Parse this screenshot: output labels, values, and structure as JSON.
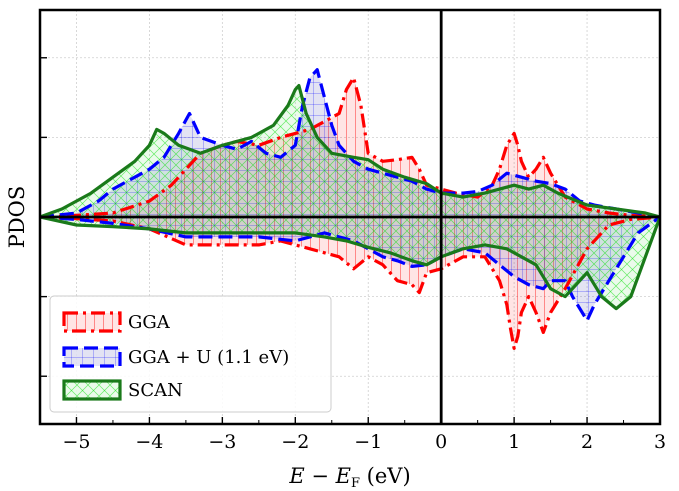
{
  "chart_data": {
    "type": "area",
    "xlabel": "E − E_F (eV)",
    "ylabel": "PDOS",
    "xlim": [
      -5.5,
      3
    ],
    "ylim": [
      -2.6,
      2.6
    ],
    "xticks": [
      -5,
      -4,
      -3,
      -2,
      -1,
      0,
      1,
      2,
      3
    ],
    "xtick_labels": [
      "−5",
      "−4",
      "−3",
      "−2",
      "−1",
      "0",
      "1",
      "2",
      "3"
    ],
    "grid": true,
    "legend_position": "lower-left",
    "reference_lines": {
      "vertical_x": 0,
      "horizontal_y": 0
    },
    "series": [
      {
        "name": "GGA",
        "color": "#ff0000",
        "line_style": "dash-dot",
        "hatch": "vertical-lines",
        "up": {
          "x": [
            -5.5,
            -5.0,
            -4.5,
            -4.0,
            -3.7,
            -3.5,
            -3.3,
            -3.0,
            -2.8,
            -2.5,
            -2.2,
            -2.0,
            -1.8,
            -1.6,
            -1.4,
            -1.3,
            -1.2,
            -1.1,
            -1.0,
            -0.8,
            -0.6,
            -0.4,
            -0.3,
            -0.2,
            0.0,
            0.2,
            0.5,
            0.7,
            0.8,
            0.9,
            1.0,
            1.05,
            1.1,
            1.2,
            1.3,
            1.4,
            1.5,
            1.7,
            2.0,
            2.3,
            2.6,
            3.0
          ],
          "y": [
            0.0,
            0.02,
            0.05,
            0.2,
            0.4,
            0.6,
            0.8,
            0.9,
            0.95,
            0.9,
            1.0,
            1.05,
            1.1,
            1.2,
            1.3,
            1.6,
            1.75,
            1.4,
            0.8,
            0.7,
            0.72,
            0.75,
            0.6,
            0.4,
            0.35,
            0.3,
            0.25,
            0.4,
            0.6,
            0.9,
            1.05,
            0.9,
            0.7,
            0.5,
            0.6,
            0.75,
            0.55,
            0.25,
            0.1,
            0.05,
            0.02,
            0.0
          ]
        },
        "down": {
          "x": [
            -5.5,
            -5.0,
            -4.5,
            -4.0,
            -3.5,
            -3.0,
            -2.5,
            -2.2,
            -2.0,
            -1.8,
            -1.6,
            -1.4,
            -1.2,
            -1.0,
            -0.8,
            -0.6,
            -0.4,
            -0.3,
            -0.2,
            0.0,
            0.3,
            0.6,
            0.8,
            0.9,
            0.95,
            1.0,
            1.05,
            1.1,
            1.2,
            1.3,
            1.4,
            1.5,
            1.7,
            2.0,
            2.3,
            2.6,
            3.0
          ],
          "y": [
            0.0,
            -0.02,
            -0.05,
            -0.15,
            -0.35,
            -0.35,
            -0.35,
            -0.3,
            -0.35,
            -0.4,
            -0.45,
            -0.5,
            -0.65,
            -0.5,
            -0.6,
            -0.8,
            -0.85,
            -0.95,
            -0.7,
            -0.65,
            -0.5,
            -0.5,
            -0.8,
            -1.1,
            -1.4,
            -1.65,
            -1.5,
            -1.2,
            -1.0,
            -1.2,
            -1.45,
            -1.2,
            -0.9,
            -0.4,
            -0.1,
            -0.03,
            0.0
          ]
        }
      },
      {
        "name": "GGA + U (1.1 eV)",
        "color": "#0000ff",
        "line_style": "dashed",
        "hatch": "grid",
        "up": {
          "x": [
            -5.5,
            -5.0,
            -4.7,
            -4.5,
            -4.2,
            -4.0,
            -3.8,
            -3.6,
            -3.45,
            -3.3,
            -3.0,
            -2.8,
            -2.6,
            -2.4,
            -2.2,
            -2.0,
            -1.9,
            -1.8,
            -1.7,
            -1.6,
            -1.5,
            -1.4,
            -1.2,
            -1.0,
            -0.8,
            -0.6,
            -0.4,
            -0.2,
            0.0,
            0.3,
            0.5,
            0.7,
            0.9,
            1.1,
            1.3,
            1.5,
            1.7,
            1.9,
            2.1,
            2.4,
            2.7,
            3.0
          ],
          "y": [
            0.0,
            0.05,
            0.2,
            0.35,
            0.5,
            0.6,
            0.75,
            1.05,
            1.3,
            1.0,
            0.9,
            0.85,
            0.95,
            0.8,
            0.75,
            0.9,
            1.4,
            1.75,
            1.85,
            1.5,
            1.15,
            0.9,
            0.7,
            0.6,
            0.55,
            0.5,
            0.45,
            0.35,
            0.3,
            0.3,
            0.32,
            0.4,
            0.55,
            0.5,
            0.45,
            0.42,
            0.35,
            0.2,
            0.15,
            0.1,
            0.05,
            0.0
          ]
        },
        "down": {
          "x": [
            -5.5,
            -5.0,
            -4.5,
            -4.0,
            -3.5,
            -3.0,
            -2.5,
            -2.0,
            -1.8,
            -1.6,
            -1.4,
            -1.2,
            -1.0,
            -0.8,
            -0.6,
            -0.4,
            -0.2,
            0.0,
            0.3,
            0.6,
            0.8,
            1.0,
            1.2,
            1.4,
            1.5,
            1.7,
            1.8,
            1.9,
            2.0,
            2.1,
            2.3,
            2.5,
            2.7,
            3.0
          ],
          "y": [
            0.0,
            -0.03,
            -0.08,
            -0.15,
            -0.25,
            -0.25,
            -0.25,
            -0.3,
            -0.25,
            -0.2,
            -0.25,
            -0.3,
            -0.4,
            -0.5,
            -0.55,
            -0.62,
            -0.6,
            -0.5,
            -0.4,
            -0.45,
            -0.6,
            -0.75,
            -0.85,
            -0.9,
            -0.8,
            -0.8,
            -1.0,
            -1.15,
            -1.3,
            -1.1,
            -0.8,
            -0.5,
            -0.2,
            0.0
          ]
        }
      },
      {
        "name": "SCAN",
        "color": "#1a7a1a",
        "line_style": "solid",
        "hatch": "cross",
        "up": {
          "x": [
            -5.5,
            -5.2,
            -4.8,
            -4.5,
            -4.2,
            -4.0,
            -3.9,
            -3.8,
            -3.6,
            -3.3,
            -3.0,
            -2.6,
            -2.3,
            -2.1,
            -2.0,
            -1.95,
            -1.85,
            -1.7,
            -1.5,
            -1.2,
            -1.0,
            -0.8,
            -0.5,
            -0.2,
            0.0,
            0.3,
            0.6,
            0.8,
            1.0,
            1.2,
            1.4,
            1.6,
            2.0,
            2.4,
            2.8,
            3.0
          ],
          "y": [
            0.0,
            0.1,
            0.3,
            0.5,
            0.7,
            0.9,
            1.1,
            1.05,
            0.9,
            0.8,
            0.9,
            1.0,
            1.15,
            1.4,
            1.6,
            1.65,
            1.3,
            1.0,
            0.8,
            0.75,
            0.72,
            0.6,
            0.5,
            0.42,
            0.3,
            0.25,
            0.3,
            0.35,
            0.4,
            0.35,
            0.4,
            0.3,
            0.15,
            0.1,
            0.05,
            0.0
          ]
        },
        "down": {
          "x": [
            -5.5,
            -5.0,
            -4.5,
            -4.0,
            -3.5,
            -3.0,
            -2.5,
            -2.0,
            -1.6,
            -1.3,
            -1.0,
            -0.7,
            -0.4,
            -0.2,
            0.0,
            0.3,
            0.6,
            0.9,
            1.1,
            1.3,
            1.5,
            1.7,
            2.0,
            2.2,
            2.4,
            2.6,
            2.8,
            3.0
          ],
          "y": [
            0.0,
            -0.1,
            -0.12,
            -0.15,
            -0.2,
            -0.2,
            -0.2,
            -0.2,
            -0.25,
            -0.3,
            -0.38,
            -0.45,
            -0.55,
            -0.6,
            -0.5,
            -0.4,
            -0.35,
            -0.4,
            -0.5,
            -0.6,
            -0.9,
            -1.0,
            -0.7,
            -1.0,
            -1.15,
            -1.0,
            -0.5,
            0.0
          ]
        }
      }
    ]
  }
}
